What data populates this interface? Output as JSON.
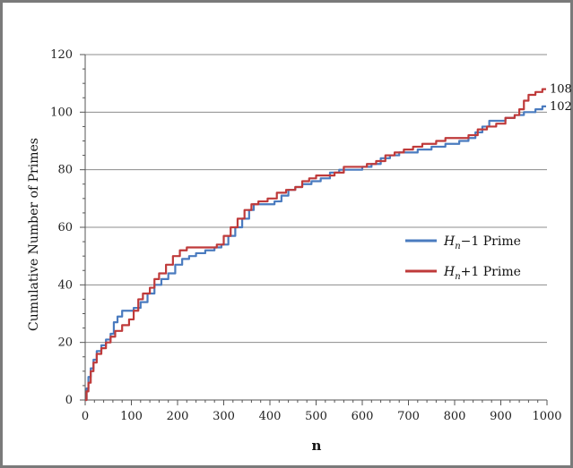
{
  "chart_data": {
    "type": "line",
    "xlabel": "n",
    "ylabel": "Cumulative Number of Primes",
    "xlim": [
      0,
      1000
    ],
    "ylim": [
      0,
      120
    ],
    "xticks": [
      0,
      100,
      200,
      300,
      400,
      500,
      600,
      700,
      800,
      900,
      1000
    ],
    "yticks": [
      0,
      20,
      40,
      60,
      80,
      100,
      120
    ],
    "grid": "horizontal",
    "legend_position": "right",
    "series": [
      {
        "name_main": "H",
        "name_sub": "n",
        "name_tail": "−1 Prime",
        "color": "#4a7bbf",
        "end_label": "102",
        "points": [
          [
            0,
            0
          ],
          [
            3,
            4
          ],
          [
            7,
            8
          ],
          [
            12,
            11
          ],
          [
            18,
            14
          ],
          [
            25,
            17
          ],
          [
            35,
            19
          ],
          [
            45,
            21
          ],
          [
            55,
            23
          ],
          [
            62,
            27
          ],
          [
            70,
            29
          ],
          [
            80,
            31
          ],
          [
            95,
            31
          ],
          [
            105,
            32
          ],
          [
            120,
            34
          ],
          [
            135,
            37
          ],
          [
            150,
            40
          ],
          [
            165,
            42
          ],
          [
            180,
            44
          ],
          [
            195,
            47
          ],
          [
            210,
            49
          ],
          [
            225,
            50
          ],
          [
            240,
            51
          ],
          [
            260,
            52
          ],
          [
            280,
            53
          ],
          [
            295,
            54
          ],
          [
            310,
            57
          ],
          [
            325,
            60
          ],
          [
            340,
            63
          ],
          [
            355,
            66
          ],
          [
            365,
            68
          ],
          [
            390,
            68
          ],
          [
            410,
            69
          ],
          [
            425,
            71
          ],
          [
            440,
            73
          ],
          [
            455,
            74
          ],
          [
            470,
            75
          ],
          [
            490,
            76
          ],
          [
            510,
            77
          ],
          [
            530,
            79
          ],
          [
            550,
            80
          ],
          [
            580,
            80
          ],
          [
            600,
            81
          ],
          [
            620,
            82
          ],
          [
            640,
            84
          ],
          [
            660,
            85
          ],
          [
            680,
            86
          ],
          [
            700,
            86
          ],
          [
            720,
            87
          ],
          [
            750,
            88
          ],
          [
            780,
            89
          ],
          [
            810,
            90
          ],
          [
            830,
            91
          ],
          [
            845,
            93
          ],
          [
            860,
            95
          ],
          [
            875,
            97
          ],
          [
            890,
            97
          ],
          [
            910,
            98
          ],
          [
            930,
            99
          ],
          [
            950,
            100
          ],
          [
            975,
            101
          ],
          [
            990,
            102
          ],
          [
            998,
            102
          ]
        ]
      },
      {
        "name_main": "H",
        "name_sub": "n",
        "name_tail": "+1 Prime",
        "color": "#bf3a3a",
        "end_label": "108",
        "points": [
          [
            0,
            0
          ],
          [
            3,
            3
          ],
          [
            7,
            6
          ],
          [
            12,
            10
          ],
          [
            18,
            13
          ],
          [
            25,
            16
          ],
          [
            35,
            18
          ],
          [
            45,
            20
          ],
          [
            55,
            22
          ],
          [
            65,
            24
          ],
          [
            80,
            26
          ],
          [
            95,
            28
          ],
          [
            105,
            31
          ],
          [
            115,
            35
          ],
          [
            125,
            37
          ],
          [
            140,
            39
          ],
          [
            150,
            42
          ],
          [
            160,
            44
          ],
          [
            175,
            47
          ],
          [
            190,
            50
          ],
          [
            205,
            52
          ],
          [
            220,
            53
          ],
          [
            260,
            53
          ],
          [
            285,
            54
          ],
          [
            300,
            57
          ],
          [
            315,
            60
          ],
          [
            330,
            63
          ],
          [
            345,
            66
          ],
          [
            360,
            68
          ],
          [
            375,
            69
          ],
          [
            395,
            70
          ],
          [
            415,
            72
          ],
          [
            435,
            73
          ],
          [
            455,
            74
          ],
          [
            470,
            76
          ],
          [
            485,
            77
          ],
          [
            500,
            78
          ],
          [
            520,
            78
          ],
          [
            540,
            79
          ],
          [
            560,
            81
          ],
          [
            590,
            81
          ],
          [
            610,
            82
          ],
          [
            630,
            83
          ],
          [
            650,
            85
          ],
          [
            670,
            86
          ],
          [
            690,
            87
          ],
          [
            710,
            88
          ],
          [
            730,
            89
          ],
          [
            760,
            90
          ],
          [
            780,
            91
          ],
          [
            810,
            91
          ],
          [
            830,
            92
          ],
          [
            850,
            94
          ],
          [
            870,
            95
          ],
          [
            890,
            96
          ],
          [
            910,
            98
          ],
          [
            930,
            99
          ],
          [
            940,
            101
          ],
          [
            950,
            104
          ],
          [
            960,
            106
          ],
          [
            975,
            107
          ],
          [
            990,
            108
          ],
          [
            998,
            108
          ]
        ]
      }
    ]
  }
}
